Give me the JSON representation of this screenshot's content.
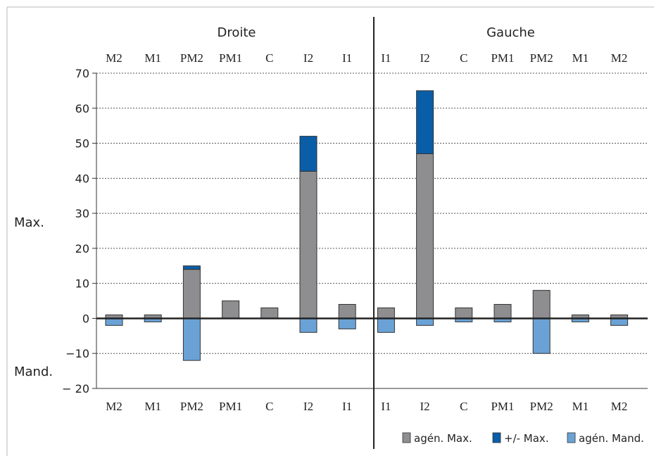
{
  "chart_data": {
    "type": "bar",
    "group_titles": [
      "Droite",
      "Gauche"
    ],
    "categories": [
      "M2",
      "M1",
      "PM2",
      "PM1",
      "C",
      "I2",
      "I1",
      "I1",
      "I2",
      "C",
      "PM1",
      "PM2",
      "M1",
      "M2"
    ],
    "ylim": [
      -20,
      70
    ],
    "yticks": [
      70,
      60,
      50,
      40,
      30,
      20,
      10,
      0,
      -10,
      -20
    ],
    "ytick_labels": [
      "70",
      "60",
      "50",
      "40",
      "30",
      "20",
      "10",
      "0",
      "−10",
      "− 20"
    ],
    "ylabel_top": "Max.",
    "ylabel_bottom": "Mand.",
    "grid": true,
    "legend_position": "bottom-right",
    "series": [
      {
        "name": "agén. Max.",
        "color": "#8e8e91",
        "values": [
          1,
          1,
          14,
          5,
          3,
          42,
          4,
          3,
          47,
          3,
          4,
          8,
          1,
          1
        ]
      },
      {
        "name": "+/- Max.",
        "color": "#0a5ea8",
        "values": [
          0,
          0,
          1,
          0,
          0,
          10,
          0,
          0,
          18,
          0,
          0,
          0,
          0,
          0
        ]
      },
      {
        "name": "agén. Mand.",
        "color": "#6aa2d6",
        "values": [
          -2,
          -1,
          -12,
          0,
          0,
          -4,
          -3,
          -4,
          -2,
          -1,
          -1,
          -10,
          -1,
          -2
        ]
      }
    ]
  }
}
